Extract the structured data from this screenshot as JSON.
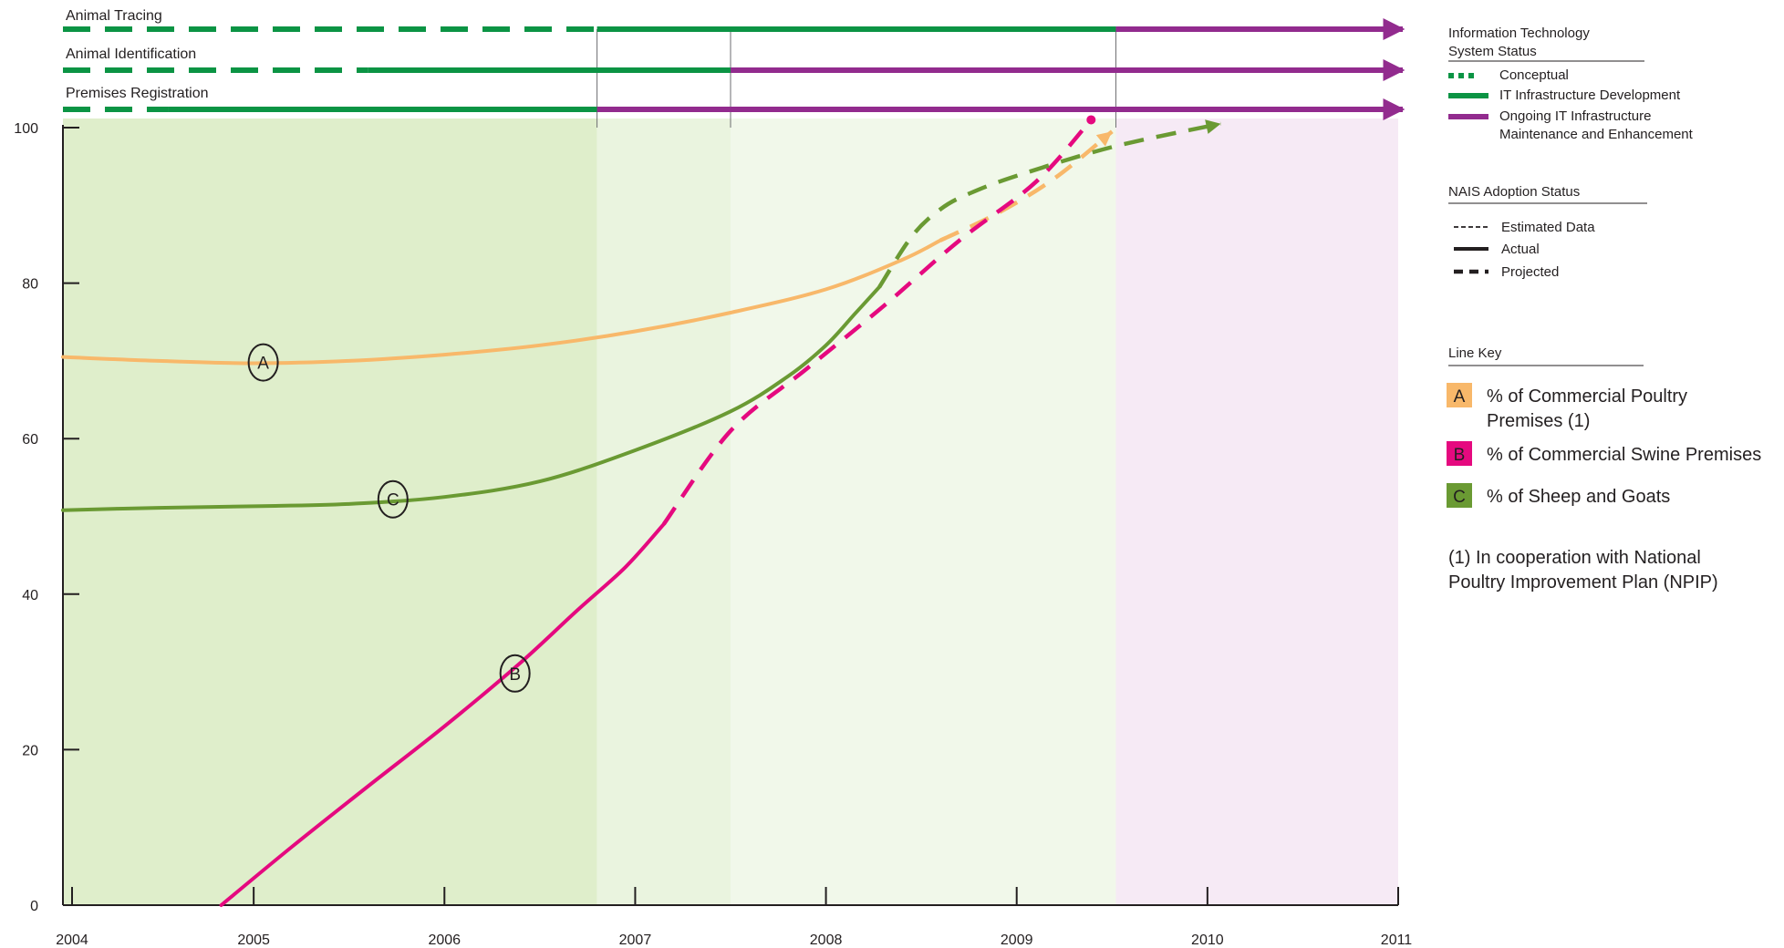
{
  "chart_data": {
    "type": "line",
    "xlim": [
      2004,
      2011
    ],
    "ylim": [
      0,
      100
    ],
    "x_ticks": [
      2004,
      2005,
      2006,
      2007,
      2008,
      2009,
      2010,
      2011
    ],
    "y_ticks": [
      0,
      20,
      40,
      60,
      80,
      100
    ],
    "grid": false,
    "background_bands": [
      {
        "from": 2004,
        "to": 2006.8,
        "color": "#dfeecb"
      },
      {
        "from": 2006.8,
        "to": 2007.5,
        "color": "#eaf4df"
      },
      {
        "from": 2007.5,
        "to": 2009.52,
        "color": "#f1f8ea"
      },
      {
        "from": 2009.52,
        "to": 2011,
        "color": "#f6eaf5"
      }
    ],
    "timeline_bars": [
      {
        "label": "Animal Tracing",
        "segments": [
          {
            "status": "conceptual",
            "from": 2004,
            "to": 2006.8
          },
          {
            "status": "development",
            "from": 2006.8,
            "to": 2009.52
          },
          {
            "status": "maintenance",
            "from": 2009.52,
            "to": 2011
          }
        ]
      },
      {
        "label": "Animal Identification",
        "segments": [
          {
            "status": "conceptual",
            "from": 2004,
            "to": 2005.6
          },
          {
            "status": "development",
            "from": 2005.6,
            "to": 2007.5
          },
          {
            "status": "maintenance",
            "from": 2007.5,
            "to": 2011
          }
        ]
      },
      {
        "label": "Premises Registration",
        "segments": [
          {
            "status": "conceptual",
            "from": 2004,
            "to": 2004.55
          },
          {
            "status": "development",
            "from": 2004.55,
            "to": 2006.8
          },
          {
            "status": "maintenance",
            "from": 2006.8,
            "to": 2011
          }
        ]
      }
    ],
    "series": [
      {
        "name": "% of Commercial Poultry Premises (1)",
        "key": "A",
        "color": "#f8b86a",
        "label_at": [
          2005.05,
          69.8
        ],
        "actual": [
          [
            2004,
            70.5
          ],
          [
            2004.5,
            70
          ],
          [
            2005,
            69.7
          ],
          [
            2005.5,
            70
          ],
          [
            2006,
            70.8
          ],
          [
            2006.5,
            72
          ],
          [
            2007,
            73.8
          ],
          [
            2007.5,
            76.2
          ],
          [
            2008,
            79.2
          ],
          [
            2008.4,
            83
          ],
          [
            2008.6,
            85.5
          ]
        ],
        "projected": [
          [
            2008.6,
            85.5
          ],
          [
            2008.9,
            89
          ],
          [
            2009.2,
            93.5
          ],
          [
            2009.5,
            99.5
          ]
        ]
      },
      {
        "name": "% of Commercial Swine Premises",
        "key": "B",
        "color": "#e5097f",
        "label_at": [
          2006.37,
          29.8
        ],
        "actual": [
          [
            2004.83,
            0
          ],
          [
            2005.2,
            7.5
          ],
          [
            2005.6,
            15.3
          ],
          [
            2006,
            23
          ],
          [
            2006.4,
            31.2
          ],
          [
            2006.7,
            38
          ],
          [
            2006.95,
            43.5
          ],
          [
            2007.15,
            49
          ]
        ],
        "projected": [
          [
            2007.15,
            49
          ],
          [
            2007.5,
            61
          ],
          [
            2007.9,
            69
          ],
          [
            2008.3,
            77
          ],
          [
            2008.7,
            85.5
          ],
          [
            2009.1,
            93
          ],
          [
            2009.39,
            101
          ]
        ]
      },
      {
        "name": "% of Sheep and Goats",
        "key": "C",
        "color": "#6a9a33",
        "label_at": [
          2005.73,
          52.2
        ],
        "actual": [
          [
            2004,
            50.8
          ],
          [
            2004.5,
            51.1
          ],
          [
            2005,
            51.3
          ],
          [
            2005.5,
            51.6
          ],
          [
            2006,
            52.5
          ],
          [
            2006.5,
            54.5
          ],
          [
            2007,
            58.5
          ],
          [
            2007.5,
            63.5
          ],
          [
            2007.8,
            68
          ],
          [
            2008,
            72
          ],
          [
            2008.15,
            76
          ],
          [
            2008.28,
            79.5
          ]
        ],
        "projected": [
          [
            2008.28,
            79.5
          ],
          [
            2008.45,
            86
          ],
          [
            2008.6,
            89.5
          ],
          [
            2008.75,
            91.5
          ],
          [
            2009,
            93.8
          ],
          [
            2009.5,
            97.5
          ],
          [
            2010.07,
            100.5
          ]
        ]
      }
    ]
  },
  "legend": {
    "it_title_line1": "Information Technology",
    "it_title_line2": "System Status",
    "it_items": [
      {
        "label": "Conceptual",
        "status": "conceptual"
      },
      {
        "label": "IT Infrastructure Development",
        "status": "development"
      },
      {
        "label_line1": "Ongoing IT Infrastructure",
        "label_line2": "Maintenance and Enhancement",
        "status": "maintenance"
      }
    ],
    "nais_title": "NAIS Adoption  Status",
    "nais_items": [
      {
        "label": "Estimated Data",
        "style": "estimated"
      },
      {
        "label": "Actual",
        "style": "actual"
      },
      {
        "label": "Projected",
        "style": "projected"
      }
    ],
    "line_key_title": "Line Key",
    "line_key_items": [
      {
        "key": "A",
        "color": "#f8b86a",
        "label_line1": "% of Commercial Poultry",
        "label_line2": "Premises (1)"
      },
      {
        "key": "B",
        "color": "#e5097f",
        "label_line1": "% of Commercial Swine Premises",
        "label_line2": ""
      },
      {
        "key": "C",
        "color": "#6a9a33",
        "label_line1": "% of Sheep and Goats",
        "label_line2": ""
      }
    ],
    "footnote_line1": "(1) In cooperation with National",
    "footnote_line2": "Poultry Improvement Plan (NPIP)"
  },
  "colors": {
    "conceptual": "#0b9444",
    "development": "#0b9444",
    "maintenance": "#922b8e",
    "axis": "#231f20"
  }
}
